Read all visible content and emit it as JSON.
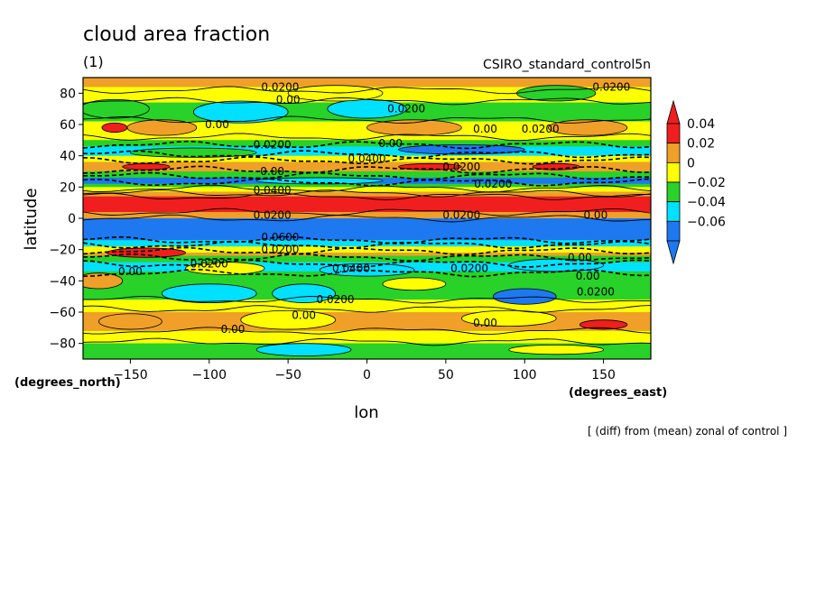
{
  "chart_data": {
    "type": "heatmap",
    "title": "cloud area fraction",
    "subtitle": "(1)",
    "source_label": "CSIRO_standard_control5n",
    "xlabel": "lon",
    "ylabel": "latitude",
    "x_unit": "(degrees_east)",
    "y_unit": "(degrees_north)",
    "footnote": "[ (diff) from (mean) zonal of control ]",
    "xlim": [
      -180,
      180
    ],
    "ylim": [
      -90,
      90
    ],
    "x_ticks": [
      -150,
      -100,
      -50,
      0,
      50,
      100,
      150
    ],
    "y_ticks": [
      -80,
      -60,
      -40,
      -20,
      0,
      20,
      40,
      60,
      80
    ],
    "x_tick_labels": [
      "−150",
      "−100",
      "−50",
      "0",
      "50",
      "100",
      "150"
    ],
    "y_tick_labels": [
      "−80",
      "−60",
      "−40",
      "−20",
      "0",
      "20",
      "40",
      "60",
      "80"
    ],
    "colorbar": {
      "levels": [
        -0.06,
        -0.04,
        -0.02,
        0,
        0.02,
        0.04
      ],
      "labels": [
        "−0.06",
        "−0.04",
        "−0.02",
        "0",
        "0.02",
        "0.04"
      ],
      "colors": [
        "#1e78f0",
        "#00e0ff",
        "#28d228",
        "#ffff00",
        "#f0a028",
        "#f01e1e"
      ],
      "extend": "both"
    },
    "contour_labels": [
      {
        "lon": -55,
        "lat": 84,
        "text": "0.0200"
      },
      {
        "lon": -50,
        "lat": 76,
        "text": "0.00"
      },
      {
        "lon": 25,
        "lat": 70,
        "text": "0.0200"
      },
      {
        "lon": 155,
        "lat": 84,
        "text": "0.0200"
      },
      {
        "lon": 110,
        "lat": 57,
        "text": "0.0200"
      },
      {
        "lon": 75,
        "lat": 57,
        "text": "0.00"
      },
      {
        "lon": -95,
        "lat": 60,
        "text": "0.00"
      },
      {
        "lon": -60,
        "lat": 47,
        "text": "0.0200"
      },
      {
        "lon": 15,
        "lat": 48,
        "text": "0.00"
      },
      {
        "lon": 0,
        "lat": 38,
        "text": "0.0400"
      },
      {
        "lon": -60,
        "lat": 30,
        "text": "0.00"
      },
      {
        "lon": -60,
        "lat": 18,
        "text": "0.0400"
      },
      {
        "lon": 80,
        "lat": 22,
        "text": "0.0200"
      },
      {
        "lon": 60,
        "lat": 33,
        "text": "0.0200"
      },
      {
        "lon": -60,
        "lat": 2,
        "text": "0.0200"
      },
      {
        "lon": 60,
        "lat": 2,
        "text": "0.0200"
      },
      {
        "lon": 145,
        "lat": 2,
        "text": "0.00"
      },
      {
        "lon": -55,
        "lat": -12,
        "text": "0.0600"
      },
      {
        "lon": -55,
        "lat": -20,
        "text": "0.0200"
      },
      {
        "lon": -100,
        "lat": -29,
        "text": "0.0200"
      },
      {
        "lon": -150,
        "lat": -34,
        "text": "0.00"
      },
      {
        "lon": -10,
        "lat": -32,
        "text": "0.0400"
      },
      {
        "lon": 65,
        "lat": -32,
        "text": "0.0200"
      },
      {
        "lon": 135,
        "lat": -25,
        "text": "0.00"
      },
      {
        "lon": 140,
        "lat": -37,
        "text": "0.00"
      },
      {
        "lon": 145,
        "lat": -47,
        "text": "0.0200"
      },
      {
        "lon": -20,
        "lat": -52,
        "text": "0.0200"
      },
      {
        "lon": -40,
        "lat": -62,
        "text": "0.00"
      },
      {
        "lon": 75,
        "lat": -67,
        "text": "0.00"
      },
      {
        "lon": -85,
        "lat": -71,
        "text": "0.00"
      }
    ]
  }
}
